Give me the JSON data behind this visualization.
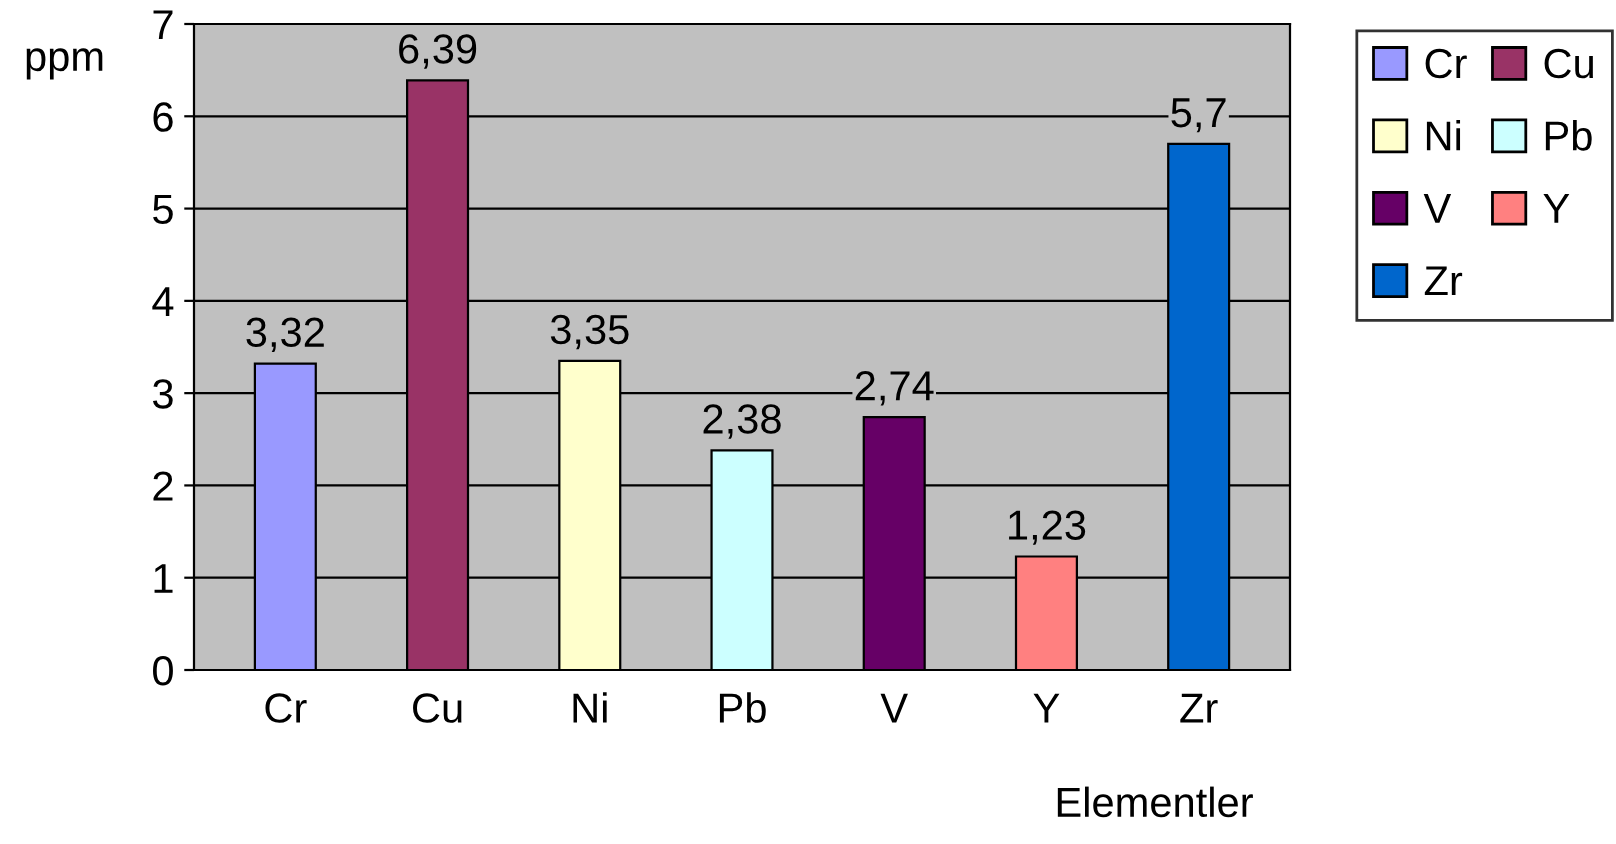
{
  "chart_data": {
    "type": "bar",
    "ylabel": "ppm",
    "xlabel": "Elementler",
    "categories": [
      "Cr",
      "Cu",
      "Ni",
      "Pb",
      "V",
      "Y",
      "Zr"
    ],
    "series": [
      {
        "name": "Cr",
        "color": "#9999ff",
        "values": [
          3.32,
          null,
          null,
          null,
          null,
          null,
          null
        ],
        "value_labels": [
          "3,32",
          null,
          null,
          null,
          null,
          null,
          null
        ]
      },
      {
        "name": "Cu",
        "color": "#993366",
        "values": [
          null,
          6.39,
          null,
          null,
          null,
          null,
          null
        ],
        "value_labels": [
          null,
          "6,39",
          null,
          null,
          null,
          null,
          null
        ]
      },
      {
        "name": "Ni",
        "color": "#ffffcc",
        "values": [
          null,
          null,
          3.35,
          null,
          null,
          null,
          null
        ],
        "value_labels": [
          null,
          null,
          "3,35",
          null,
          null,
          null,
          null
        ]
      },
      {
        "name": "Pb",
        "color": "#ccffff",
        "values": [
          null,
          null,
          null,
          2.38,
          null,
          null,
          null
        ],
        "value_labels": [
          null,
          null,
          null,
          "2,38",
          null,
          null,
          null
        ]
      },
      {
        "name": "V",
        "color": "#660066",
        "values": [
          null,
          null,
          null,
          null,
          2.74,
          null,
          null
        ],
        "value_labels": [
          null,
          null,
          null,
          null,
          "2,74",
          null,
          null
        ]
      },
      {
        "name": "Y",
        "color": "#ff8080",
        "values": [
          null,
          null,
          null,
          null,
          null,
          1.23,
          null
        ],
        "value_labels": [
          null,
          null,
          null,
          null,
          null,
          "1,23",
          null
        ]
      },
      {
        "name": "Zr",
        "color": "#0066cc",
        "values": [
          null,
          null,
          null,
          null,
          null,
          null,
          5.7
        ],
        "value_labels": [
          null,
          null,
          null,
          null,
          null,
          null,
          "5,7"
        ]
      }
    ],
    "ylim": [
      0,
      7
    ],
    "yticks": [
      0,
      1,
      2,
      3,
      4,
      5,
      6,
      7
    ],
    "grid": "y",
    "legend": "right"
  }
}
